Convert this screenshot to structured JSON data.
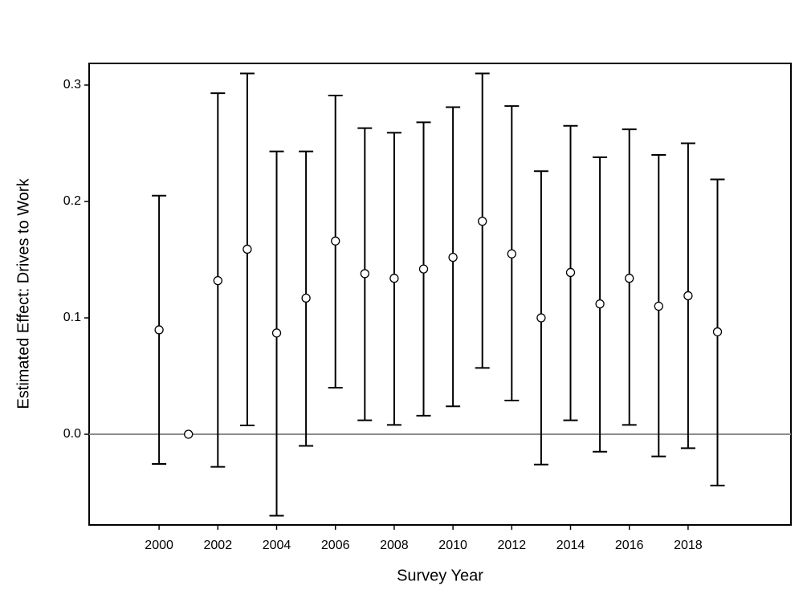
{
  "chart_data": {
    "type": "errorbar",
    "xlabel": "Survey Year",
    "ylabel": "Estimated Effect: Drives to Work",
    "x": [
      2000,
      2001,
      2002,
      2003,
      2004,
      2005,
      2006,
      2007,
      2008,
      2009,
      2010,
      2011,
      2012,
      2013,
      2014,
      2015,
      2016,
      2017,
      2018,
      2019
    ],
    "values": [
      0.0897,
      0,
      0.132,
      0.159,
      0.087,
      0.117,
      0.166,
      0.138,
      0.134,
      0.142,
      0.152,
      0.183,
      0.155,
      0.1,
      0.139,
      0.112,
      0.134,
      0.11,
      0.119,
      0.088
    ],
    "lower": [
      -0.0255,
      null,
      -0.028,
      0.0076,
      -0.07,
      -0.01,
      0.04,
      0.012,
      0.008,
      0.016,
      0.024,
      0.057,
      0.029,
      -0.026,
      0.012,
      -0.015,
      0.008,
      -0.019,
      -0.012,
      -0.044
    ],
    "upper": [
      0.205,
      null,
      0.293,
      0.31,
      0.243,
      0.243,
      0.291,
      0.263,
      0.259,
      0.268,
      0.281,
      0.31,
      0.282,
      0.226,
      0.265,
      0.238,
      0.262,
      0.24,
      0.25,
      0.219
    ],
    "xlim": [
      1997.62,
      2021.5
    ],
    "ylim": [
      -0.0779,
      0.3186
    ],
    "xticks": [
      2000,
      2002,
      2004,
      2006,
      2008,
      2010,
      2012,
      2014,
      2016,
      2018
    ],
    "yticks": [
      {
        "value": 0,
        "label": "0.0"
      },
      0.1,
      0.2,
      0.3
    ],
    "reference_line": 0,
    "reference_color": "#8c8c8c",
    "color": "#000000"
  }
}
